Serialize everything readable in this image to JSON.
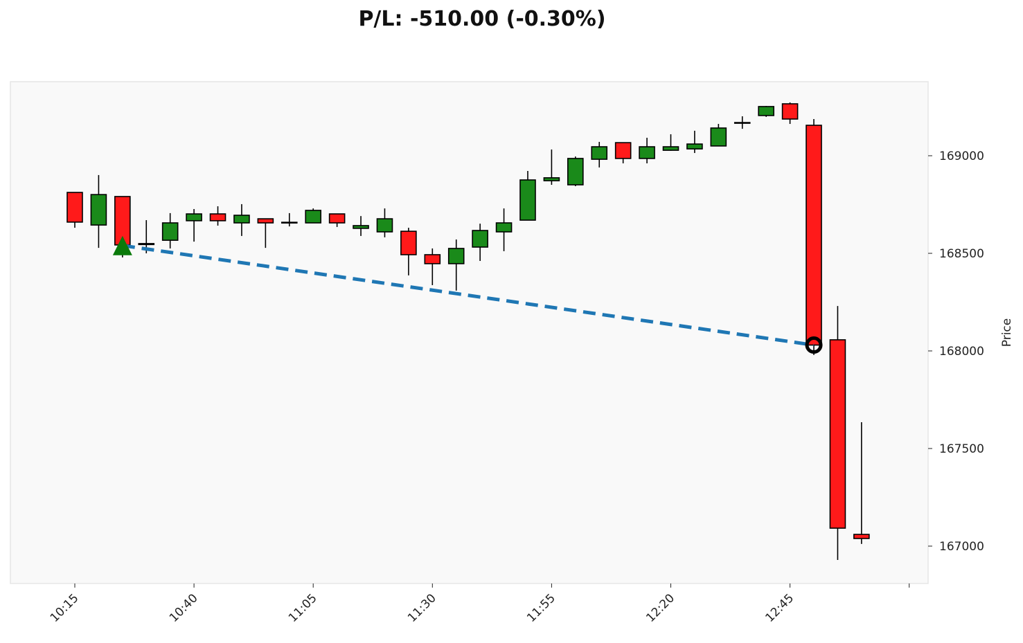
{
  "chart_data": {
    "type": "candlestick",
    "title": "P/L: -510.00 (-0.30%)",
    "xlabel": "",
    "ylabel": "Price",
    "ylim": [
      166820,
      169380
    ],
    "yticks": [
      167000,
      167500,
      168000,
      168500,
      169000
    ],
    "ytick_labels": [
      "167000",
      "167500",
      "168000",
      "168500",
      "169000"
    ],
    "xtick_indices": [
      0,
      5,
      10,
      15,
      20,
      25,
      30,
      35
    ],
    "xtick_labels": [
      "10:15",
      "10:40",
      "11:05",
      "11:30",
      "11:55",
      "12:20",
      "12:45",
      ""
    ],
    "colors": {
      "up": "#1a8a1a",
      "down": "#ff1a1a",
      "trade_line": "#1f77b4",
      "entry": "#0a7a0a",
      "exit": "#000000",
      "background": "#f9f9f9"
    },
    "candles": [
      {
        "t": "10:15",
        "o": 168812,
        "h": 168812,
        "l": 168631,
        "c": 168660
      },
      {
        "t": "10:20",
        "o": 168645,
        "h": 168901,
        "l": 168528,
        "c": 168801
      },
      {
        "t": "10:25",
        "o": 168791,
        "h": 168791,
        "l": 168479,
        "c": 168543
      },
      {
        "t": "10:30",
        "o": 168545,
        "h": 168670,
        "l": 168500,
        "c": 168550
      },
      {
        "t": "10:35",
        "o": 168567,
        "h": 168706,
        "l": 168525,
        "c": 168656
      },
      {
        "t": "10:40",
        "o": 168667,
        "h": 168727,
        "l": 168560,
        "c": 168702
      },
      {
        "t": "10:45",
        "o": 168702,
        "h": 168741,
        "l": 168642,
        "c": 168667
      },
      {
        "t": "10:50",
        "o": 168656,
        "h": 168752,
        "l": 168589,
        "c": 168695
      },
      {
        "t": "10:55",
        "o": 168677,
        "h": 168677,
        "l": 168528,
        "c": 168656
      },
      {
        "t": "11:00",
        "o": 168656,
        "h": 168706,
        "l": 168638,
        "c": 168659
      },
      {
        "t": "11:05",
        "o": 168656,
        "h": 168730,
        "l": 168656,
        "c": 168720
      },
      {
        "t": "11:10",
        "o": 168702,
        "h": 168702,
        "l": 168635,
        "c": 168656
      },
      {
        "t": "11:15",
        "o": 168628,
        "h": 168691,
        "l": 168589,
        "c": 168642
      },
      {
        "t": "11:20",
        "o": 168610,
        "h": 168730,
        "l": 168582,
        "c": 168677
      },
      {
        "t": "11:25",
        "o": 168613,
        "h": 168631,
        "l": 168387,
        "c": 168493
      },
      {
        "t": "11:30",
        "o": 168493,
        "h": 168525,
        "l": 168337,
        "c": 168447
      },
      {
        "t": "11:35",
        "o": 168447,
        "h": 168571,
        "l": 168309,
        "c": 168525
      },
      {
        "t": "11:40",
        "o": 168532,
        "h": 168652,
        "l": 168461,
        "c": 168617
      },
      {
        "t": "11:45",
        "o": 168610,
        "h": 168730,
        "l": 168511,
        "c": 168656
      },
      {
        "t": "11:50",
        "o": 168670,
        "h": 168922,
        "l": 168670,
        "c": 168876
      },
      {
        "t": "11:55",
        "o": 168872,
        "h": 169032,
        "l": 168851,
        "c": 168887
      },
      {
        "t": "12:00",
        "o": 168851,
        "h": 168996,
        "l": 168844,
        "c": 168986
      },
      {
        "t": "12:05",
        "o": 168982,
        "h": 169071,
        "l": 168940,
        "c": 169046
      },
      {
        "t": "12:10",
        "o": 169067,
        "h": 169067,
        "l": 168961,
        "c": 168986
      },
      {
        "t": "12:15",
        "o": 168986,
        "h": 169092,
        "l": 168961,
        "c": 169046
      },
      {
        "t": "12:20",
        "o": 169028,
        "h": 169110,
        "l": 169025,
        "c": 169046
      },
      {
        "t": "12:25",
        "o": 169035,
        "h": 169128,
        "l": 169014,
        "c": 169060
      },
      {
        "t": "12:30",
        "o": 169050,
        "h": 169163,
        "l": 169050,
        "c": 169142
      },
      {
        "t": "12:35",
        "o": 169167,
        "h": 169202,
        "l": 169138,
        "c": 169170
      },
      {
        "t": "12:40",
        "o": 169206,
        "h": 169255,
        "l": 169199,
        "c": 169252
      },
      {
        "t": "12:45",
        "o": 169266,
        "h": 169273,
        "l": 169163,
        "c": 169188
      },
      {
        "t": "12:50",
        "o": 169156,
        "h": 169188,
        "l": 167979,
        "c": 168030
      },
      {
        "t": "12:55",
        "o": 168057,
        "h": 168230,
        "l": 166929,
        "c": 167092
      },
      {
        "t": "13:00",
        "o": 167060,
        "h": 167635,
        "l": 167011,
        "c": 167039
      }
    ],
    "trade": {
      "entry_index": 2,
      "entry_price": 168540,
      "exit_index": 31,
      "exit_price": 168030
    }
  }
}
